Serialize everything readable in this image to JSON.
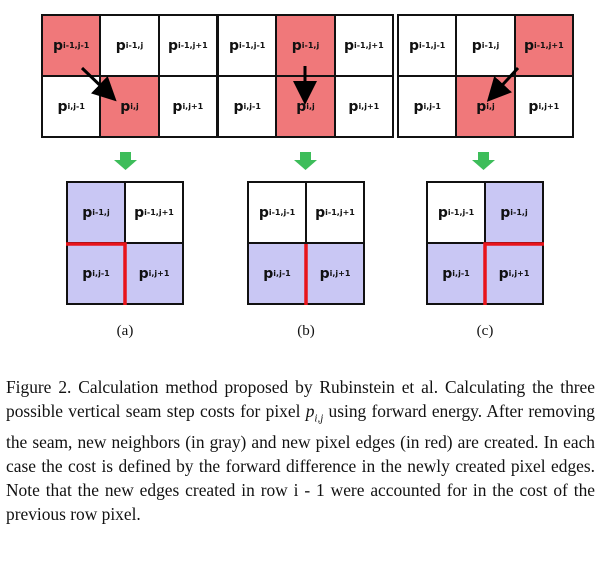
{
  "panels": [
    {
      "label": "(a)",
      "top": [
        {
          "base": "p",
          "sub": "i-1,j-1"
        },
        {
          "base": "p",
          "sub": "i-1,j"
        },
        {
          "base": "p",
          "sub": "i-1,j+1"
        },
        {
          "base": "p",
          "sub": "i,j-1"
        },
        {
          "base": "p",
          "sub": "i,j"
        },
        {
          "base": "p",
          "sub": "i,j+1"
        }
      ],
      "bottom": [
        {
          "base": "p",
          "sub": "i-1,j"
        },
        {
          "base": "p",
          "sub": "i-1,j+1"
        },
        {
          "base": "p",
          "sub": "i,j-1"
        },
        {
          "base": "p",
          "sub": "i,j+1"
        }
      ]
    },
    {
      "label": "(b)",
      "top": [
        {
          "base": "p",
          "sub": "i-1,j-1"
        },
        {
          "base": "p",
          "sub": "i-1,j"
        },
        {
          "base": "p",
          "sub": "i-1,j+1"
        },
        {
          "base": "p",
          "sub": "i,j-1"
        },
        {
          "base": "p",
          "sub": "i,j"
        },
        {
          "base": "p",
          "sub": "i,j+1"
        }
      ],
      "bottom": [
        {
          "base": "p",
          "sub": "i-1,j-1"
        },
        {
          "base": "p",
          "sub": "i-1,j+1"
        },
        {
          "base": "p",
          "sub": "i,j-1"
        },
        {
          "base": "p",
          "sub": "i,j+1"
        }
      ]
    },
    {
      "label": "(c)",
      "top": [
        {
          "base": "p",
          "sub": "i-1,j-1"
        },
        {
          "base": "p",
          "sub": "i-1,j"
        },
        {
          "base": "p",
          "sub": "i-1,j+1"
        },
        {
          "base": "p",
          "sub": "i,j-1"
        },
        {
          "base": "p",
          "sub": "i,j"
        },
        {
          "base": "p",
          "sub": "i,j+1"
        }
      ],
      "bottom": [
        {
          "base": "p",
          "sub": "i-1,j-1"
        },
        {
          "base": "p",
          "sub": "i-1,j"
        },
        {
          "base": "p",
          "sub": "i,j-1"
        },
        {
          "base": "p",
          "sub": "i,j+1"
        }
      ]
    }
  ],
  "caption": {
    "part1": "Figure 2. Calculation method proposed by Rubinstein et al. Calculating the three possible vertical seam step costs for pixel ",
    "math_base": "p",
    "math_sub": "i,j",
    "part2": " using forward energy. After removing the seam, new neighbors (in gray) and new pixel edges (in red) are created. In each case the cost is defined by the forward difference in the newly created pixel edges. Note that the new edges created in row i - 1 were accounted for in the cost of the previous row pixel."
  },
  "colors": {
    "seam_red": "#f0787a",
    "neighbor_blue": "#c9c7f4",
    "arrow_green": "#3dbd5a",
    "edge_red": "#e8141b"
  }
}
